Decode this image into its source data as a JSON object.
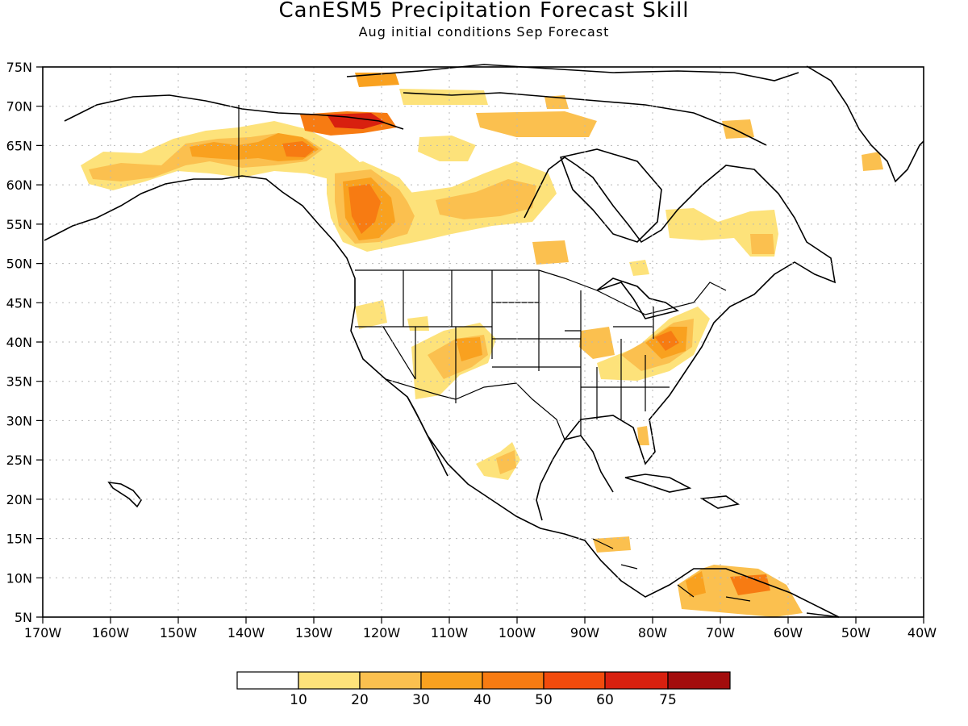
{
  "title": "CanESM5 Precipitation Forecast Skill",
  "subtitle": "Aug initial conditions  Sep Forecast",
  "map": {
    "lon_range": [
      -170,
      -40
    ],
    "lat_range": [
      5,
      75
    ],
    "lat_ticks": [
      "75N",
      "70N",
      "65N",
      "60N",
      "55N",
      "50N",
      "45N",
      "40N",
      "35N",
      "30N",
      "25N",
      "20N",
      "15N",
      "10N",
      "5N"
    ],
    "lon_ticks": [
      "170W",
      "160W",
      "150W",
      "140W",
      "130W",
      "120W",
      "110W",
      "100W",
      "90W",
      "80W",
      "70W",
      "60W",
      "50W",
      "40W"
    ],
    "grid": true
  },
  "colorbar": {
    "colors": [
      "#ffffff",
      "#fde27a",
      "#fbc04f",
      "#f9a11f",
      "#f77b12",
      "#f24b0c",
      "#d8200f",
      "#a30c0c"
    ],
    "labels": [
      "10",
      "20",
      "30",
      "40",
      "50",
      "60",
      "75"
    ]
  }
}
